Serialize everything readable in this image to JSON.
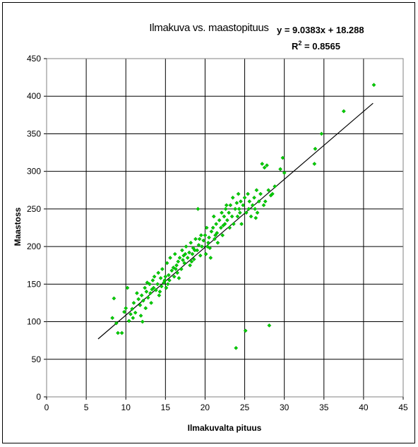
{
  "chart_data": {
    "type": "scatter",
    "title": "Ilmakuva vs. maastopituus",
    "xlabel": "Ilmakuvalta pituus",
    "ylabel": "Maastoss",
    "xlim": [
      0,
      45
    ],
    "ylim": [
      0,
      450
    ],
    "x_ticks": [
      0,
      5,
      10,
      15,
      20,
      25,
      30,
      35,
      40,
      45
    ],
    "y_ticks": [
      0,
      50,
      100,
      150,
      200,
      250,
      300,
      350,
      400,
      450
    ],
    "grid": true,
    "marker_color": "#00cc00",
    "trendline": {
      "type": "linear",
      "slope": 9.0383,
      "intercept": 18.288,
      "x_range": [
        6.5,
        41.2
      ],
      "equation_label": "y = 9.0383x + 18.288",
      "r2_prefix": "R",
      "r2_sup": "2",
      "r2_value": " = 0.8565",
      "color": "#000000"
    },
    "series": [
      {
        "points": [
          [
            8.5,
            131
          ],
          [
            8.3,
            105
          ],
          [
            8.8,
            98
          ],
          [
            9.0,
            85
          ],
          [
            9.5,
            85
          ],
          [
            9.8,
            113
          ],
          [
            10.0,
            118
          ],
          [
            10.2,
            145
          ],
          [
            10.4,
            101
          ],
          [
            10.6,
            110
          ],
          [
            10.8,
            117
          ],
          [
            11.0,
            125
          ],
          [
            11.2,
            112
          ],
          [
            11.4,
            138
          ],
          [
            11.6,
            130
          ],
          [
            11.8,
            122
          ],
          [
            12.0,
            135
          ],
          [
            12.1,
            100
          ],
          [
            12.2,
            128
          ],
          [
            12.4,
            145
          ],
          [
            12.6,
            140
          ],
          [
            12.8,
            132
          ],
          [
            13.0,
            150
          ],
          [
            13.1,
            138
          ],
          [
            13.2,
            125
          ],
          [
            13.4,
            155
          ],
          [
            13.5,
            145
          ],
          [
            13.6,
            160
          ],
          [
            13.8,
            142
          ],
          [
            14.0,
            150
          ],
          [
            14.1,
            165
          ],
          [
            14.2,
            135
          ],
          [
            14.4,
            158
          ],
          [
            14.5,
            147
          ],
          [
            14.6,
            170
          ],
          [
            14.8,
            152
          ],
          [
            15.0,
            160
          ],
          [
            15.1,
            145
          ],
          [
            15.2,
            178
          ],
          [
            15.4,
            162
          ],
          [
            15.5,
            155
          ],
          [
            15.6,
            185
          ],
          [
            15.8,
            168
          ],
          [
            16.0,
            172
          ],
          [
            16.1,
            160
          ],
          [
            16.2,
            190
          ],
          [
            16.4,
            175
          ],
          [
            16.5,
            165
          ],
          [
            16.6,
            180
          ],
          [
            16.8,
            185
          ],
          [
            17.0,
            170
          ],
          [
            17.1,
            195
          ],
          [
            17.2,
            182
          ],
          [
            17.4,
            178
          ],
          [
            17.5,
            190
          ],
          [
            17.6,
            200
          ],
          [
            17.8,
            185
          ],
          [
            18.0,
            192
          ],
          [
            18.1,
            175
          ],
          [
            18.2,
            205
          ],
          [
            18.4,
            190
          ],
          [
            18.5,
            198
          ],
          [
            18.6,
            183
          ],
          [
            18.8,
            210
          ],
          [
            19.0,
            195
          ],
          [
            19.1,
            250
          ],
          [
            19.2,
            202
          ],
          [
            19.4,
            188
          ],
          [
            19.5,
            215
          ],
          [
            19.6,
            200
          ],
          [
            19.8,
            208
          ],
          [
            20.0,
            215
          ],
          [
            20.1,
            190
          ],
          [
            20.2,
            225
          ],
          [
            20.4,
            205
          ],
          [
            20.5,
            212
          ],
          [
            20.6,
            198
          ],
          [
            20.8,
            220
          ],
          [
            21.0,
            225
          ],
          [
            21.1,
            240
          ],
          [
            21.2,
            210
          ],
          [
            21.4,
            230
          ],
          [
            21.5,
            218
          ],
          [
            21.6,
            205
          ],
          [
            21.8,
            235
          ],
          [
            22.0,
            225
          ],
          [
            22.1,
            245
          ],
          [
            22.2,
            215
          ],
          [
            22.4,
            240
          ],
          [
            22.5,
            230
          ],
          [
            22.6,
            250
          ],
          [
            22.8,
            235
          ],
          [
            23.0,
            245
          ],
          [
            23.1,
            225
          ],
          [
            23.2,
            255
          ],
          [
            23.4,
            240
          ],
          [
            23.5,
            265
          ],
          [
            23.6,
            230
          ],
          [
            23.8,
            250
          ],
          [
            23.9,
            65
          ],
          [
            24.0,
            258
          ],
          [
            24.1,
            240
          ],
          [
            24.2,
            270
          ],
          [
            24.4,
            245
          ],
          [
            24.5,
            260
          ],
          [
            24.6,
            230
          ],
          [
            24.8,
            255
          ],
          [
            25.0,
            265
          ],
          [
            25.1,
            88
          ],
          [
            25.2,
            245
          ],
          [
            25.4,
            270
          ],
          [
            25.5,
            250
          ],
          [
            25.6,
            260
          ],
          [
            25.8,
            240
          ],
          [
            26.0,
            255
          ],
          [
            26.2,
            265
          ],
          [
            26.3,
            250
          ],
          [
            26.5,
            275
          ],
          [
            26.6,
            245
          ],
          [
            26.8,
            260
          ],
          [
            27.0,
            270
          ],
          [
            27.2,
            310
          ],
          [
            27.4,
            255
          ],
          [
            27.5,
            305
          ],
          [
            27.6,
            260
          ],
          [
            27.8,
            308
          ],
          [
            28.0,
            275
          ],
          [
            28.1,
            95
          ],
          [
            28.3,
            268
          ],
          [
            28.5,
            270
          ],
          [
            28.8,
            280
          ],
          [
            29.5,
            303
          ],
          [
            29.8,
            318
          ],
          [
            30.0,
            298
          ],
          [
            33.8,
            310
          ],
          [
            33.9,
            330
          ],
          [
            34.7,
            350
          ],
          [
            37.5,
            380
          ],
          [
            41.3,
            415
          ],
          [
            12.5,
            118
          ],
          [
            13.3,
            143
          ],
          [
            14.3,
            140
          ],
          [
            15.3,
            150
          ],
          [
            16.3,
            170
          ],
          [
            17.3,
            188
          ],
          [
            18.3,
            180
          ],
          [
            19.3,
            210
          ],
          [
            20.3,
            200
          ],
          [
            21.3,
            215
          ],
          [
            22.3,
            228
          ],
          [
            11.9,
            108
          ],
          [
            12.7,
            152
          ],
          [
            14.9,
            155
          ],
          [
            16.7,
            158
          ],
          [
            18.7,
            195
          ],
          [
            20.7,
            185
          ],
          [
            22.7,
            255
          ],
          [
            24.3,
            250
          ],
          [
            26.4,
            238
          ],
          [
            10.9,
            105
          ]
        ]
      }
    ]
  }
}
